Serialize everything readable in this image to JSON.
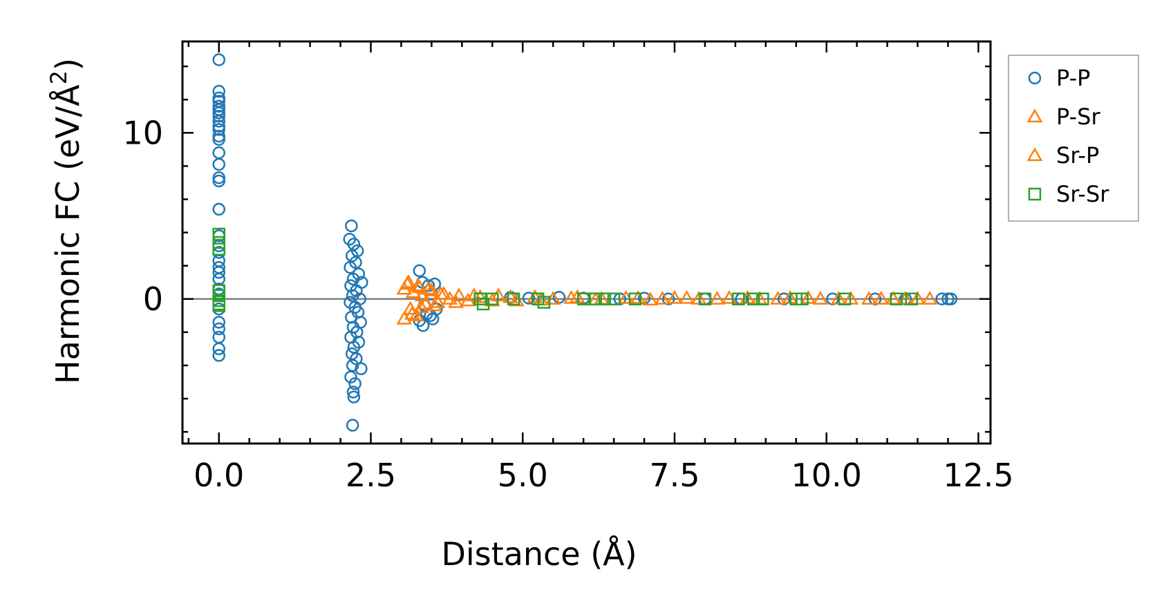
{
  "chart_data": {
    "type": "scatter",
    "title": "",
    "xlabel": "Distance (Å)",
    "ylabel_main": "Harmonic FC (eV/Å",
    "ylabel_sup": "2",
    "ylabel_end": ")",
    "xlim": [
      -0.6,
      12.7
    ],
    "ylim": [
      -8.7,
      15.5
    ],
    "xticks": [
      0.0,
      2.5,
      5.0,
      7.5,
      10.0,
      12.5
    ],
    "xtick_labels": [
      "0.0",
      "2.5",
      "5.0",
      "7.5",
      "10.0",
      "12.5"
    ],
    "yticks": [
      0,
      10
    ],
    "ytick_labels": [
      "0",
      "10"
    ],
    "zero_line": 0,
    "legend_position": "outside-right",
    "series": [
      {
        "name": "P-P",
        "marker": "circle",
        "color": "#1f77b4",
        "points": [
          [
            0.0,
            14.4
          ],
          [
            0.0,
            12.5
          ],
          [
            0.0,
            12.1
          ],
          [
            0.0,
            11.9
          ],
          [
            0.0,
            11.6
          ],
          [
            0.0,
            11.4
          ],
          [
            0.0,
            11.2
          ],
          [
            0.0,
            11.0
          ],
          [
            0.0,
            10.7
          ],
          [
            0.0,
            10.4
          ],
          [
            0.0,
            10.2
          ],
          [
            0.0,
            9.8
          ],
          [
            0.0,
            9.6
          ],
          [
            0.0,
            8.8
          ],
          [
            0.0,
            8.1
          ],
          [
            0.0,
            7.3
          ],
          [
            0.0,
            7.1
          ],
          [
            0.0,
            5.4
          ],
          [
            0.0,
            3.8
          ],
          [
            0.0,
            3.2
          ],
          [
            0.0,
            2.8
          ],
          [
            0.0,
            2.3
          ],
          [
            0.0,
            1.9
          ],
          [
            0.0,
            1.6
          ],
          [
            0.0,
            1.2
          ],
          [
            0.0,
            0.6
          ],
          [
            0.0,
            0.3
          ],
          [
            0.0,
            -0.6
          ],
          [
            0.0,
            -1.4
          ],
          [
            0.0,
            -1.8
          ],
          [
            0.0,
            -2.3
          ],
          [
            0.0,
            -3.0
          ],
          [
            0.0,
            -3.4
          ],
          [
            2.18,
            4.4
          ],
          [
            2.15,
            3.6
          ],
          [
            2.22,
            3.3
          ],
          [
            2.28,
            2.9
          ],
          [
            2.19,
            2.6
          ],
          [
            2.25,
            2.2
          ],
          [
            2.16,
            1.9
          ],
          [
            2.3,
            1.5
          ],
          [
            2.21,
            1.2
          ],
          [
            2.35,
            1.0
          ],
          [
            2.17,
            0.8
          ],
          [
            2.26,
            0.5
          ],
          [
            2.2,
            0.2
          ],
          [
            2.32,
            0.0
          ],
          [
            2.16,
            -0.2
          ],
          [
            2.24,
            -0.5
          ],
          [
            2.29,
            -0.8
          ],
          [
            2.18,
            -1.1
          ],
          [
            2.33,
            -1.4
          ],
          [
            2.21,
            -1.7
          ],
          [
            2.27,
            -2.0
          ],
          [
            2.17,
            -2.3
          ],
          [
            2.3,
            -2.6
          ],
          [
            2.22,
            -2.9
          ],
          [
            2.19,
            -3.3
          ],
          [
            2.26,
            -3.6
          ],
          [
            2.2,
            -4.0
          ],
          [
            2.34,
            -4.2
          ],
          [
            2.17,
            -4.7
          ],
          [
            2.24,
            -5.1
          ],
          [
            2.21,
            -5.6
          ],
          [
            2.22,
            -5.9
          ],
          [
            2.2,
            -7.6
          ],
          [
            3.3,
            1.7
          ],
          [
            3.35,
            1.0
          ],
          [
            3.45,
            0.8
          ],
          [
            3.55,
            0.9
          ],
          [
            3.5,
            0.3
          ],
          [
            3.38,
            -0.4
          ],
          [
            3.42,
            -0.9
          ],
          [
            3.3,
            -1.3
          ],
          [
            3.48,
            -1.0
          ],
          [
            3.58,
            -0.6
          ],
          [
            3.36,
            -1.6
          ],
          [
            3.52,
            -1.2
          ],
          [
            4.8,
            0.1
          ],
          [
            5.1,
            0.05
          ],
          [
            5.6,
            0.1
          ],
          [
            6.0,
            0.05
          ],
          [
            6.6,
            0.0
          ],
          [
            7.0,
            0.05
          ],
          [
            7.4,
            0.0
          ],
          [
            8.0,
            0.0
          ],
          [
            8.6,
            0.0
          ],
          [
            9.3,
            0.0
          ],
          [
            10.1,
            0.0
          ],
          [
            10.8,
            0.0
          ],
          [
            11.3,
            0.0
          ],
          [
            11.9,
            0.0
          ],
          [
            12.0,
            0.0
          ],
          [
            12.05,
            0.0
          ]
        ]
      },
      {
        "name": "P-Sr",
        "marker": "triangle",
        "color": "#ff7f0e",
        "points": [
          [
            3.05,
            0.6
          ],
          [
            3.1,
            0.9
          ],
          [
            3.15,
            -0.6
          ],
          [
            3.2,
            0.4
          ],
          [
            3.25,
            -1.0
          ],
          [
            3.3,
            0.7
          ],
          [
            3.35,
            0.2
          ],
          [
            3.4,
            -0.3
          ],
          [
            3.5,
            0.5
          ],
          [
            3.6,
            -0.2
          ],
          [
            3.7,
            0.3
          ],
          [
            3.8,
            0.0
          ],
          [
            3.95,
            0.2
          ],
          [
            4.1,
            -0.1
          ],
          [
            4.3,
            0.1
          ],
          [
            4.6,
            0.2
          ],
          [
            4.9,
            -0.1
          ],
          [
            5.2,
            0.1
          ],
          [
            5.5,
            0.0
          ],
          [
            5.9,
            0.1
          ],
          [
            6.3,
            0.0
          ],
          [
            6.7,
            0.05
          ],
          [
            7.1,
            -0.05
          ],
          [
            7.5,
            0.05
          ],
          [
            7.9,
            0.0
          ],
          [
            8.4,
            0.05
          ],
          [
            8.9,
            0.0
          ],
          [
            9.4,
            0.05
          ],
          [
            9.9,
            0.0
          ],
          [
            10.4,
            0.0
          ],
          [
            10.9,
            0.0
          ],
          [
            11.3,
            0.0
          ],
          [
            11.7,
            0.0
          ]
        ]
      },
      {
        "name": "Sr-P",
        "marker": "triangle",
        "color": "#ff7f0e",
        "points": [
          [
            3.05,
            -1.2
          ],
          [
            3.12,
            1.0
          ],
          [
            3.18,
            -0.9
          ],
          [
            3.28,
            0.8
          ],
          [
            3.33,
            -0.5
          ],
          [
            3.45,
            0.6
          ],
          [
            3.55,
            -0.4
          ],
          [
            3.65,
            0.3
          ],
          [
            3.9,
            -0.2
          ],
          [
            4.2,
            0.2
          ],
          [
            4.5,
            -0.1
          ],
          [
            4.8,
            0.1
          ],
          [
            5.3,
            -0.05
          ],
          [
            5.8,
            0.05
          ],
          [
            6.2,
            -0.05
          ],
          [
            6.9,
            0.05
          ],
          [
            7.3,
            0.0
          ],
          [
            7.7,
            0.05
          ],
          [
            8.2,
            0.0
          ],
          [
            8.7,
            0.05
          ],
          [
            9.2,
            0.0
          ],
          [
            9.7,
            0.05
          ],
          [
            10.2,
            0.0
          ],
          [
            10.7,
            0.0
          ],
          [
            11.1,
            0.0
          ],
          [
            11.5,
            0.0
          ]
        ]
      },
      {
        "name": "Sr-Sr",
        "marker": "square",
        "color": "#2ca02c",
        "points": [
          [
            0.0,
            3.9
          ],
          [
            0.0,
            3.4
          ],
          [
            0.0,
            3.0
          ],
          [
            0.0,
            0.5
          ],
          [
            0.0,
            0.2
          ],
          [
            0.0,
            -0.1
          ],
          [
            0.0,
            -0.3
          ],
          [
            0.0,
            -0.4
          ],
          [
            4.3,
            0.0
          ],
          [
            4.35,
            -0.3
          ],
          [
            4.5,
            0.0
          ],
          [
            4.85,
            0.0
          ],
          [
            5.25,
            0.0
          ],
          [
            5.35,
            -0.2
          ],
          [
            6.0,
            0.0
          ],
          [
            6.2,
            0.0
          ],
          [
            6.35,
            0.0
          ],
          [
            6.5,
            0.0
          ],
          [
            6.85,
            0.0
          ],
          [
            8.0,
            0.0
          ],
          [
            8.55,
            0.0
          ],
          [
            8.8,
            0.0
          ],
          [
            8.95,
            0.0
          ],
          [
            9.5,
            0.0
          ],
          [
            9.6,
            0.0
          ],
          [
            10.3,
            0.0
          ],
          [
            11.15,
            0.0
          ],
          [
            11.4,
            0.0
          ]
        ]
      }
    ],
    "legend": [
      {
        "label": "P-P",
        "marker": "circle",
        "color": "#1f77b4"
      },
      {
        "label": "P-Sr",
        "marker": "triangle",
        "color": "#ff7f0e"
      },
      {
        "label": "Sr-P",
        "marker": "triangle",
        "color": "#ff7f0e"
      },
      {
        "label": "Sr-Sr",
        "marker": "square",
        "color": "#2ca02c"
      }
    ]
  }
}
